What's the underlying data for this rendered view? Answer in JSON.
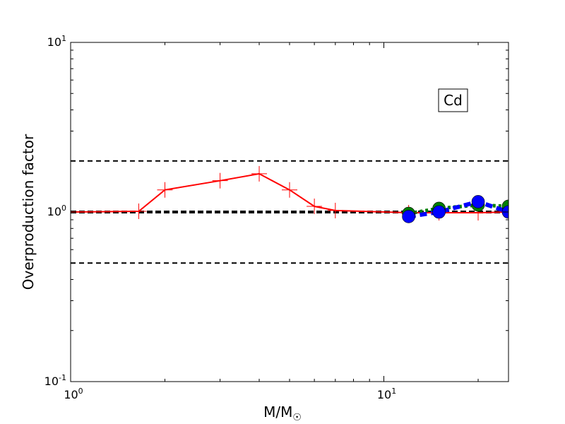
{
  "chart_data": {
    "type": "line",
    "xlabel": "M/M☉",
    "ylabel": "Overproduction factor",
    "xscale": "log",
    "yscale": "log",
    "xlim": [
      1,
      25
    ],
    "ylim": [
      0.1,
      10
    ],
    "xticks": [
      {
        "value": 1,
        "base": "10",
        "exp": "0"
      },
      {
        "value": 10,
        "base": "10",
        "exp": "1"
      }
    ],
    "yticks": [
      {
        "value": 0.1,
        "base": "10",
        "exp": "-1"
      },
      {
        "value": 1,
        "base": "10",
        "exp": "0"
      },
      {
        "value": 10,
        "base": "10",
        "exp": "1"
      }
    ],
    "annotation": "Cd",
    "reference_lines": [
      {
        "y": 2.0,
        "style": "dashed",
        "color": "#000000"
      },
      {
        "y": 1.0,
        "style": "dashed-thick",
        "color": "#000000"
      },
      {
        "y": 0.5,
        "style": "dashed",
        "color": "#000000"
      }
    ],
    "series": [
      {
        "color": "#ff0000",
        "line": "solid",
        "marker": "plus",
        "points": [
          {
            "x": 1.0,
            "y": 1.0
          },
          {
            "x": 1.65,
            "y": 1.01
          },
          {
            "x": 2.0,
            "y": 1.35
          },
          {
            "x": 3.0,
            "y": 1.53
          },
          {
            "x": 4.0,
            "y": 1.68
          },
          {
            "x": 5.0,
            "y": 1.35
          },
          {
            "x": 6.0,
            "y": 1.08
          },
          {
            "x": 7.0,
            "y": 1.02
          },
          {
            "x": 12.0,
            "y": 0.99
          },
          {
            "x": 15.0,
            "y": 0.99
          },
          {
            "x": 20.0,
            "y": 0.99
          },
          {
            "x": 25.0,
            "y": 1.0
          }
        ]
      },
      {
        "color": "#008000",
        "line": "dotted",
        "marker": "circle",
        "points": [
          {
            "x": 12.0,
            "y": 0.98
          },
          {
            "x": 15.0,
            "y": 1.05
          },
          {
            "x": 20.0,
            "y": 1.1
          },
          {
            "x": 25.0,
            "y": 1.08
          }
        ]
      },
      {
        "color": "#0000ff",
        "line": "dashed",
        "marker": "circle",
        "points": [
          {
            "x": 12.0,
            "y": 0.94
          },
          {
            "x": 15.0,
            "y": 1.0
          },
          {
            "x": 20.0,
            "y": 1.15
          },
          {
            "x": 25.0,
            "y": 1.0
          }
        ]
      }
    ]
  }
}
